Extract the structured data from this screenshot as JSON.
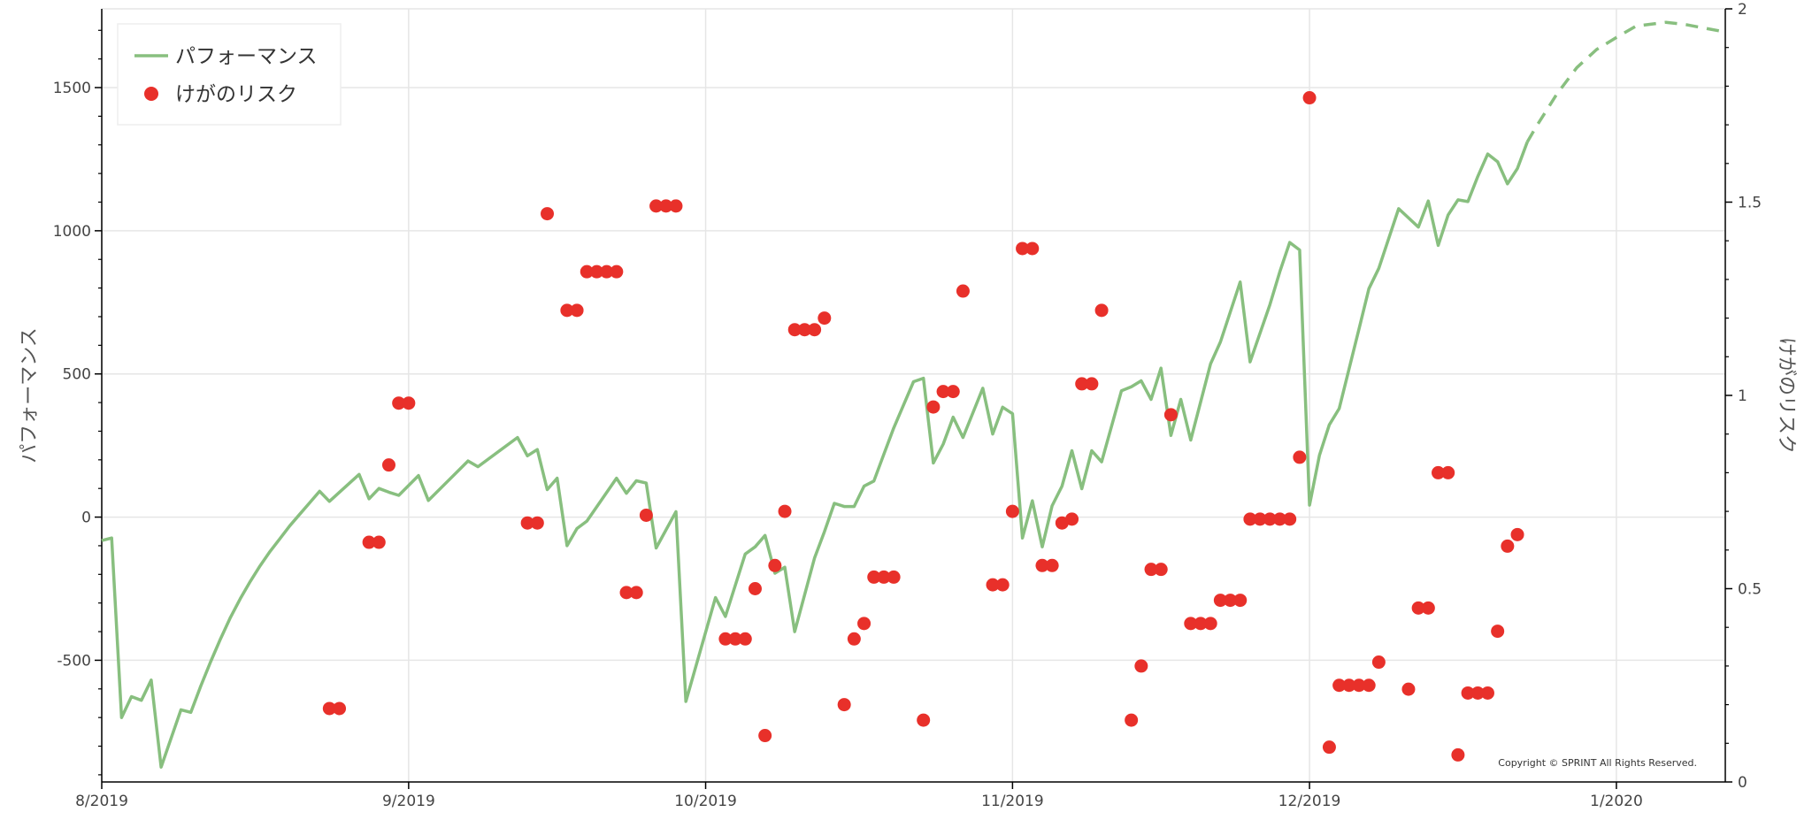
{
  "chart_data": {
    "type": "line+scatter",
    "x_axis": {
      "type": "date",
      "range": [
        "2019-08-01",
        "2020-01-12"
      ],
      "tick_labels": [
        "8/2019",
        "9/2019",
        "10/2019",
        "11/2019",
        "12/2019",
        "1/2020"
      ],
      "ticks": [
        "2019-08-01",
        "2019-09-01",
        "2019-10-01",
        "2019-11-01",
        "2019-12-01",
        "2020-01-01"
      ],
      "grid": true
    },
    "y_left": {
      "label": "パフォーマンス",
      "range": [
        -925,
        1775
      ],
      "ticks": [
        -500,
        0,
        500,
        1000,
        1500
      ],
      "tick_labels": [
        "-500",
        "0",
        "500",
        "1000",
        "1500"
      ],
      "minor_step": 100,
      "grid": true
    },
    "y_right": {
      "label": "けがのリスク",
      "range": [
        0,
        2
      ],
      "ticks": [
        0,
        0.5,
        1,
        1.5,
        2
      ],
      "tick_labels": [
        "0",
        "0.5",
        "1",
        "1.5",
        "2"
      ],
      "minor_step": 0.1
    },
    "legend": {
      "placement": "top-left",
      "entries": [
        {
          "label": "パフォーマンス",
          "marker": "line",
          "color": "#88bf7f"
        },
        {
          "label": "けがのリスク",
          "marker": "circle",
          "color": "#e8302a"
        }
      ]
    },
    "series": [
      {
        "name": "パフォーマンス",
        "axis": "left",
        "kind": "line",
        "style": "solid",
        "color": "#88bf7f",
        "points": [
          [
            "2019-08-01",
            -82
          ],
          [
            "2019-08-02",
            -73
          ],
          [
            "2019-08-03",
            -700
          ],
          [
            "2019-08-04",
            -627
          ],
          [
            "2019-08-05",
            -640
          ],
          [
            "2019-08-06",
            -569
          ],
          [
            "2019-08-07",
            -873
          ],
          [
            "2019-08-09",
            -673
          ],
          [
            "2019-08-10",
            -682
          ],
          [
            "2019-08-11",
            -590
          ],
          [
            "2019-08-12",
            -505
          ],
          [
            "2019-08-13",
            -425
          ],
          [
            "2019-08-14",
            -350
          ],
          [
            "2019-08-15",
            -285
          ],
          [
            "2019-08-16",
            -225
          ],
          [
            "2019-08-17",
            -170
          ],
          [
            "2019-08-18",
            -120
          ],
          [
            "2019-08-19",
            -75
          ],
          [
            "2019-08-20",
            -30
          ],
          [
            "2019-08-21",
            10
          ],
          [
            "2019-08-22",
            50
          ],
          [
            "2019-08-23",
            90
          ],
          [
            "2019-08-24",
            55
          ],
          [
            "2019-08-27",
            149
          ],
          [
            "2019-08-28",
            64
          ],
          [
            "2019-08-29",
            100
          ],
          [
            "2019-08-30",
            87
          ],
          [
            "2019-08-31",
            76
          ],
          [
            "2019-09-02",
            145
          ],
          [
            "2019-09-03",
            58
          ],
          [
            "2019-09-07",
            196
          ],
          [
            "2019-09-08",
            176
          ],
          [
            "2019-09-12",
            278
          ],
          [
            "2019-09-13",
            214
          ],
          [
            "2019-09-14",
            236
          ],
          [
            "2019-09-15",
            96
          ],
          [
            "2019-09-16",
            136
          ],
          [
            "2019-09-17",
            -100
          ],
          [
            "2019-09-18",
            -40
          ],
          [
            "2019-09-19",
            -14
          ],
          [
            "2019-09-22",
            136
          ],
          [
            "2019-09-23",
            83
          ],
          [
            "2019-09-24",
            127
          ],
          [
            "2019-09-25",
            119
          ],
          [
            "2019-09-26",
            -108
          ],
          [
            "2019-09-28",
            19
          ],
          [
            "2019-09-29",
            -644
          ],
          [
            "2019-10-02",
            -281
          ],
          [
            "2019-10-03",
            -347
          ],
          [
            "2019-10-05",
            -129
          ],
          [
            "2019-10-06",
            -104
          ],
          [
            "2019-10-07",
            -64
          ],
          [
            "2019-10-08",
            -196
          ],
          [
            "2019-10-09",
            -175
          ],
          [
            "2019-10-10",
            -400
          ],
          [
            "2019-10-12",
            -143
          ],
          [
            "2019-10-13",
            -51
          ],
          [
            "2019-10-14",
            48
          ],
          [
            "2019-10-15",
            37
          ],
          [
            "2019-10-16",
            37
          ],
          [
            "2019-10-17",
            108
          ],
          [
            "2019-10-18",
            126
          ],
          [
            "2019-10-19",
            219
          ],
          [
            "2019-10-20",
            311
          ],
          [
            "2019-10-22",
            473
          ],
          [
            "2019-10-23",
            485
          ],
          [
            "2019-10-24",
            189
          ],
          [
            "2019-10-25",
            255
          ],
          [
            "2019-10-26",
            349
          ],
          [
            "2019-10-27",
            278
          ],
          [
            "2019-10-29",
            450
          ],
          [
            "2019-10-30",
            290
          ],
          [
            "2019-10-31",
            384
          ],
          [
            "2019-11-01",
            361
          ],
          [
            "2019-11-02",
            -73
          ],
          [
            "2019-11-03",
            57
          ],
          [
            "2019-11-04",
            -104
          ],
          [
            "2019-11-05",
            39
          ],
          [
            "2019-11-06",
            108
          ],
          [
            "2019-11-07",
            232
          ],
          [
            "2019-11-08",
            99
          ],
          [
            "2019-11-09",
            232
          ],
          [
            "2019-11-10",
            193
          ],
          [
            "2019-11-12",
            441
          ],
          [
            "2019-11-13",
            455
          ],
          [
            "2019-11-14",
            476
          ],
          [
            "2019-11-15",
            411
          ],
          [
            "2019-11-16",
            520
          ],
          [
            "2019-11-17",
            285
          ],
          [
            "2019-11-18",
            411
          ],
          [
            "2019-11-19",
            269
          ],
          [
            "2019-11-21",
            535
          ],
          [
            "2019-11-22",
            612
          ],
          [
            "2019-11-24",
            821
          ],
          [
            "2019-11-25",
            542
          ],
          [
            "2019-11-27",
            742
          ],
          [
            "2019-11-28",
            857
          ],
          [
            "2019-11-29",
            959
          ],
          [
            "2019-11-30",
            933
          ],
          [
            "2019-12-01",
            42
          ],
          [
            "2019-12-02",
            216
          ],
          [
            "2019-12-03",
            322
          ],
          [
            "2019-12-04",
            379
          ],
          [
            "2019-12-06",
            657
          ],
          [
            "2019-12-07",
            798
          ],
          [
            "2019-12-08",
            869
          ],
          [
            "2019-12-10",
            1077
          ],
          [
            "2019-12-12",
            1013
          ],
          [
            "2019-12-13",
            1104
          ],
          [
            "2019-12-14",
            949
          ],
          [
            "2019-12-15",
            1055
          ],
          [
            "2019-12-16",
            1108
          ],
          [
            "2019-12-17",
            1102
          ],
          [
            "2019-12-18",
            1190
          ],
          [
            "2019-12-19",
            1268
          ],
          [
            "2019-12-20",
            1241
          ],
          [
            "2019-12-21",
            1164
          ],
          [
            "2019-12-22",
            1217
          ],
          [
            "2019-12-23",
            1310
          ]
        ]
      },
      {
        "axis": "left",
        "kind": "line",
        "style": "dashed",
        "color": "#88bf7f",
        "points": [
          [
            "2019-12-23",
            1310
          ],
          [
            "2019-12-24",
            1369
          ],
          [
            "2019-12-26",
            1478
          ],
          [
            "2019-12-28",
            1570
          ],
          [
            "2019-12-30",
            1633
          ],
          [
            "2020-01-01",
            1675
          ],
          [
            "2020-01-03",
            1715
          ],
          [
            "2020-01-06",
            1728
          ],
          [
            "2020-01-08",
            1720
          ],
          [
            "2020-01-12",
            1694
          ]
        ]
      },
      {
        "name": "けがのリスク",
        "axis": "right",
        "kind": "scatter",
        "color": "#e8302a",
        "points": [
          [
            "2019-08-24",
            0.19
          ],
          [
            "2019-08-25",
            0.19
          ],
          [
            "2019-08-28",
            0.62
          ],
          [
            "2019-08-29",
            0.62
          ],
          [
            "2019-08-30",
            0.82
          ],
          [
            "2019-08-31",
            0.98
          ],
          [
            "2019-09-01",
            0.98
          ],
          [
            "2019-09-13",
            0.67
          ],
          [
            "2019-09-14",
            0.67
          ],
          [
            "2019-09-15",
            1.47
          ],
          [
            "2019-09-17",
            1.22
          ],
          [
            "2019-09-18",
            1.22
          ],
          [
            "2019-09-19",
            1.32
          ],
          [
            "2019-09-20",
            1.32
          ],
          [
            "2019-09-21",
            1.32
          ],
          [
            "2019-09-22",
            1.32
          ],
          [
            "2019-09-23",
            0.49
          ],
          [
            "2019-09-24",
            0.49
          ],
          [
            "2019-09-25",
            0.69
          ],
          [
            "2019-09-26",
            1.49
          ],
          [
            "2019-09-27",
            1.49
          ],
          [
            "2019-09-28",
            1.49
          ],
          [
            "2019-10-03",
            0.37
          ],
          [
            "2019-10-04",
            0.37
          ],
          [
            "2019-10-05",
            0.37
          ],
          [
            "2019-10-06",
            0.5
          ],
          [
            "2019-10-07",
            0.12
          ],
          [
            "2019-10-08",
            0.56
          ],
          [
            "2019-10-09",
            0.7
          ],
          [
            "2019-10-10",
            1.17
          ],
          [
            "2019-10-11",
            1.17
          ],
          [
            "2019-10-12",
            1.17
          ],
          [
            "2019-10-13",
            1.2
          ],
          [
            "2019-10-15",
            0.2
          ],
          [
            "2019-10-16",
            0.37
          ],
          [
            "2019-10-17",
            0.41
          ],
          [
            "2019-10-18",
            0.53
          ],
          [
            "2019-10-19",
            0.53
          ],
          [
            "2019-10-20",
            0.53
          ],
          [
            "2019-10-23",
            0.16
          ],
          [
            "2019-10-24",
            0.97
          ],
          [
            "2019-10-25",
            1.01
          ],
          [
            "2019-10-26",
            1.01
          ],
          [
            "2019-10-27",
            1.27
          ],
          [
            "2019-10-30",
            0.51
          ],
          [
            "2019-10-31",
            0.51
          ],
          [
            "2019-11-01",
            0.7
          ],
          [
            "2019-11-02",
            1.38
          ],
          [
            "2019-11-03",
            1.38
          ],
          [
            "2019-11-04",
            0.56
          ],
          [
            "2019-11-05",
            0.56
          ],
          [
            "2019-11-06",
            0.67
          ],
          [
            "2019-11-07",
            0.68
          ],
          [
            "2019-11-08",
            1.03
          ],
          [
            "2019-11-09",
            1.03
          ],
          [
            "2019-11-10",
            1.22
          ],
          [
            "2019-11-13",
            0.16
          ],
          [
            "2019-11-14",
            0.3
          ],
          [
            "2019-11-15",
            0.55
          ],
          [
            "2019-11-16",
            0.55
          ],
          [
            "2019-11-17",
            0.95
          ],
          [
            "2019-11-19",
            0.41
          ],
          [
            "2019-11-20",
            0.41
          ],
          [
            "2019-11-21",
            0.41
          ],
          [
            "2019-11-22",
            0.47
          ],
          [
            "2019-11-23",
            0.47
          ],
          [
            "2019-11-24",
            0.47
          ],
          [
            "2019-11-25",
            0.68
          ],
          [
            "2019-11-26",
            0.68
          ],
          [
            "2019-11-27",
            0.68
          ],
          [
            "2019-11-28",
            0.68
          ],
          [
            "2019-11-29",
            0.68
          ],
          [
            "2019-11-30",
            0.84
          ],
          [
            "2019-12-01",
            1.77
          ],
          [
            "2019-12-03",
            0.09
          ],
          [
            "2019-12-04",
            0.25
          ],
          [
            "2019-12-05",
            0.25
          ],
          [
            "2019-12-06",
            0.25
          ],
          [
            "2019-12-07",
            0.25
          ],
          [
            "2019-12-08",
            0.31
          ],
          [
            "2019-12-11",
            0.24
          ],
          [
            "2019-12-12",
            0.45
          ],
          [
            "2019-12-13",
            0.45
          ],
          [
            "2019-12-14",
            0.8
          ],
          [
            "2019-12-15",
            0.8
          ],
          [
            "2019-12-16",
            0.07
          ],
          [
            "2019-12-17",
            0.23
          ],
          [
            "2019-12-18",
            0.23
          ],
          [
            "2019-12-19",
            0.23
          ],
          [
            "2019-12-20",
            0.39
          ],
          [
            "2019-12-21",
            0.61
          ],
          [
            "2019-12-22",
            0.64
          ]
        ]
      }
    ],
    "annotations": [
      "Copyright © SPRINT All Rights Reserved."
    ]
  }
}
